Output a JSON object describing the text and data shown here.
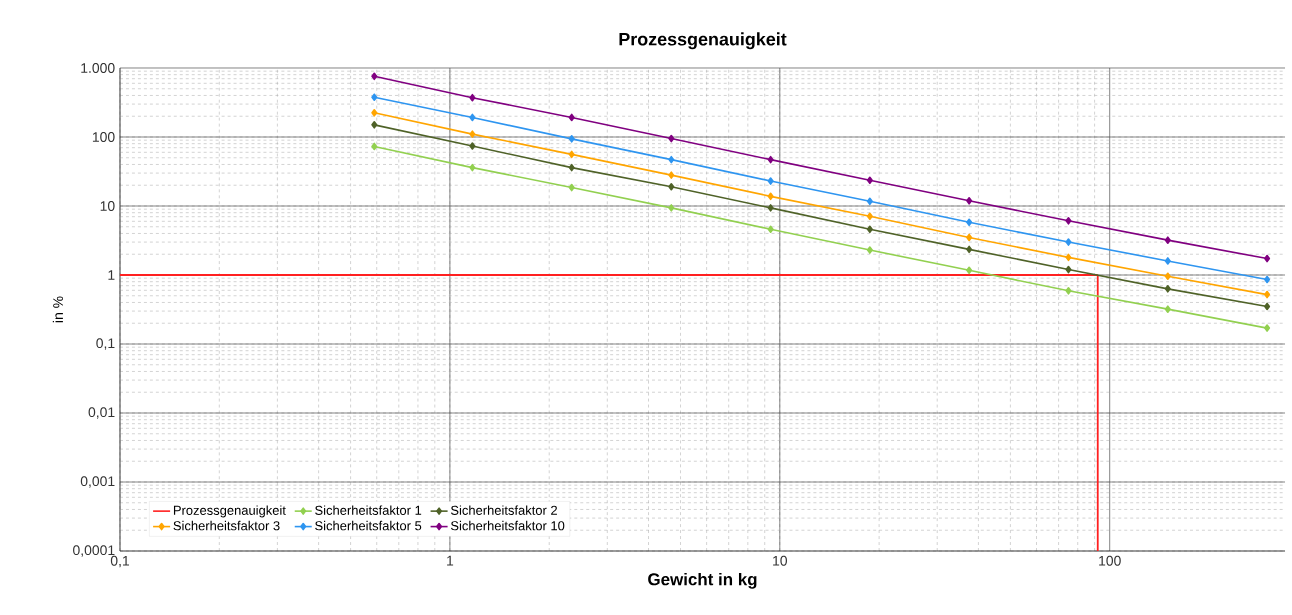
{
  "chart_data": {
    "type": "line",
    "title": "Prozessgenauigkeit",
    "xlabel": "Gewicht in kg",
    "ylabel": "in %",
    "log": "xy",
    "grid": true,
    "legend": "bottom left",
    "marker": "diamond",
    "line_style": "solid",
    "xlim": [
      0.1,
      340
    ],
    "ylim": [
      0.0001,
      1000
    ],
    "xticks": [
      {
        "value": 0.1,
        "label": "0,1"
      },
      1,
      10,
      100
    ],
    "yticks": [
      {
        "value": 0.0001,
        "label": "0,0001"
      },
      {
        "value": 0.001,
        "label": "0,001"
      },
      {
        "value": 0.01,
        "label": "0,01"
      },
      {
        "value": 0.1,
        "label": "0,1"
      },
      1,
      10,
      100,
      {
        "value": 1000,
        "label": "1.000"
      }
    ],
    "ref_lines": [
      {
        "axis": "y",
        "value": 1,
        "label": "Prozessgenauigkeit",
        "color": "#ff2020"
      },
      {
        "axis": "x",
        "value": 92,
        "color": "#ff2020"
      }
    ],
    "x": [
      0.59,
      1.17,
      2.34,
      4.69,
      9.38,
      18.75,
      37.5,
      75,
      150,
      300
    ],
    "series": [
      {
        "name": "Sicherheitsfaktor 1",
        "color": "#92d050",
        "values": [
          73,
          36,
          18.5,
          9.4,
          4.6,
          2.3,
          1.17,
          0.59,
          0.32,
          0.17
        ]
      },
      {
        "name": "Sicherheitsfaktor 2",
        "color": "#4f6228",
        "values": [
          150,
          74,
          36,
          19,
          9.4,
          4.6,
          2.35,
          1.2,
          0.63,
          0.35
        ]
      },
      {
        "name": "Sicherheitsfaktor 3",
        "color": "#ffa500",
        "values": [
          224,
          110,
          56,
          28,
          13.8,
          7.1,
          3.5,
          1.8,
          0.96,
          0.52
        ]
      },
      {
        "name": "Sicherheitsfaktor 5",
        "color": "#2e95f0",
        "values": [
          377,
          192,
          94,
          47,
          23,
          11.7,
          5.8,
          3,
          1.6,
          0.86
        ]
      },
      {
        "name": "Sicherheitsfaktor 10",
        "color": "#800080",
        "values": [
          757,
          371,
          192,
          95,
          47,
          23.6,
          11.9,
          6.1,
          3.2,
          1.73
        ]
      }
    ]
  }
}
